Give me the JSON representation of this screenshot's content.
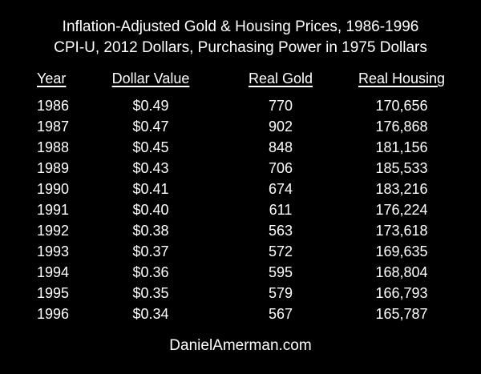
{
  "title_line1": "Inflation-Adjusted Gold & Housing Prices, 1986-1996",
  "title_line2": "CPI-U, 2012 Dollars, Purchasing Power in 1975 Dollars",
  "footer": "DanielAmerman.com",
  "colors": {
    "background": "#000000",
    "text": "#ffffff"
  },
  "chart_data": {
    "type": "table",
    "title": "Inflation-Adjusted Gold & Housing Prices, 1986-1996",
    "subtitle": "CPI-U, 2012 Dollars, Purchasing Power in 1975 Dollars",
    "columns": [
      "Year",
      "Dollar Value",
      "Real Gold",
      "Real Housing"
    ],
    "rows": [
      [
        "1986",
        "$0.49",
        "770",
        "170,656"
      ],
      [
        "1987",
        "$0.47",
        "902",
        "176,868"
      ],
      [
        "1988",
        "$0.45",
        "848",
        "181,156"
      ],
      [
        "1989",
        "$0.43",
        "706",
        "185,533"
      ],
      [
        "1990",
        "$0.41",
        "674",
        "183,216"
      ],
      [
        "1991",
        "$0.40",
        "611",
        "176,224"
      ],
      [
        "1992",
        "$0.38",
        "563",
        "173,618"
      ],
      [
        "1993",
        "$0.37",
        "572",
        "169,635"
      ],
      [
        "1994",
        "$0.36",
        "595",
        "168,804"
      ],
      [
        "1995",
        "$0.35",
        "579",
        "166,793"
      ],
      [
        "1996",
        "$0.34",
        "567",
        "165,787"
      ]
    ]
  }
}
